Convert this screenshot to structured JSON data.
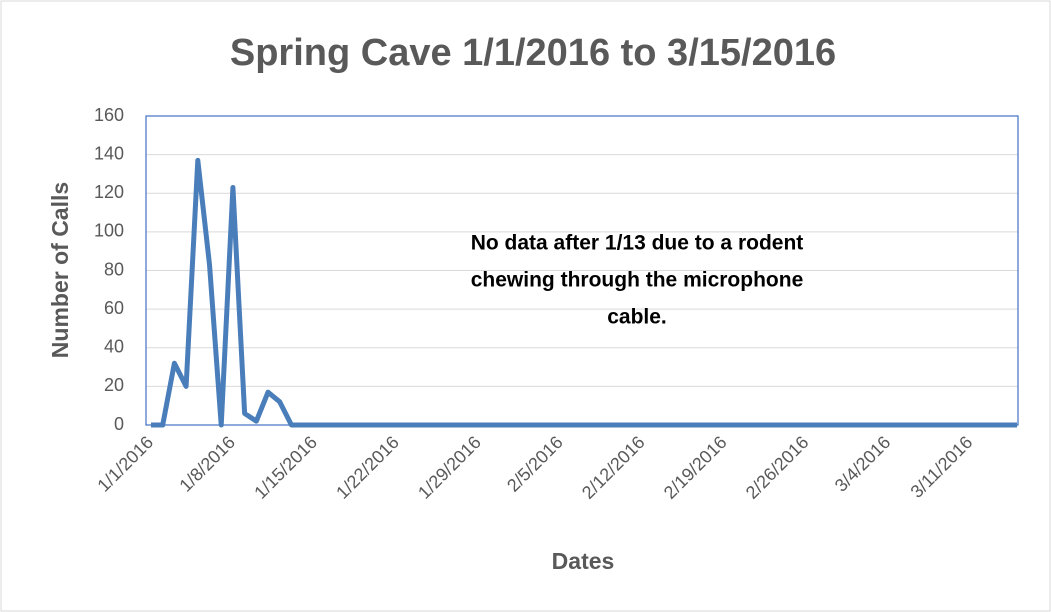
{
  "chart_data": {
    "type": "line",
    "title": "Spring Cave 1/1/2016 to 3/15/2016",
    "x_label": "Dates",
    "y_label": "Number of Calls",
    "annotation": [
      "No data after 1/13 due to a rodent",
      "chewing through the microphone",
      "cable."
    ],
    "categories": [
      "1/1/2016",
      null,
      null,
      null,
      null,
      null,
      null,
      "1/8/2016",
      null,
      null,
      null,
      null,
      null,
      null,
      "1/15/2016",
      null,
      null,
      null,
      null,
      null,
      null,
      "1/22/2016",
      null,
      null,
      null,
      null,
      null,
      null,
      "1/29/2016",
      null,
      null,
      null,
      null,
      null,
      null,
      "2/5/2016",
      null,
      null,
      null,
      null,
      null,
      null,
      "2/12/2016",
      null,
      null,
      null,
      null,
      null,
      null,
      "2/19/2016",
      null,
      null,
      null,
      null,
      null,
      null,
      "2/26/2016",
      null,
      null,
      null,
      null,
      null,
      null,
      "3/4/2016",
      null,
      null,
      null,
      null,
      null,
      null,
      "3/11/2016",
      null,
      null,
      null,
      null
    ],
    "series": [
      {
        "name": "Number of Calls",
        "color": "#4a7ebb",
        "values": [
          0,
          0,
          32,
          20,
          137,
          83,
          0,
          123,
          6,
          2,
          17,
          12,
          0,
          0,
          0,
          0,
          0,
          0,
          0,
          0,
          0,
          0,
          0,
          0,
          0,
          0,
          0,
          0,
          0,
          0,
          0,
          0,
          0,
          0,
          0,
          0,
          0,
          0,
          0,
          0,
          0,
          0,
          0,
          0,
          0,
          0,
          0,
          0,
          0,
          0,
          0,
          0,
          0,
          0,
          0,
          0,
          0,
          0,
          0,
          0,
          0,
          0,
          0,
          0,
          0,
          0,
          0,
          0,
          0,
          0,
          0,
          0,
          0,
          0,
          0
        ]
      }
    ],
    "ylim": [
      0,
      160
    ],
    "yticks": [
      0,
      20,
      40,
      60,
      80,
      100,
      120,
      140,
      160
    ],
    "grid": true
  }
}
